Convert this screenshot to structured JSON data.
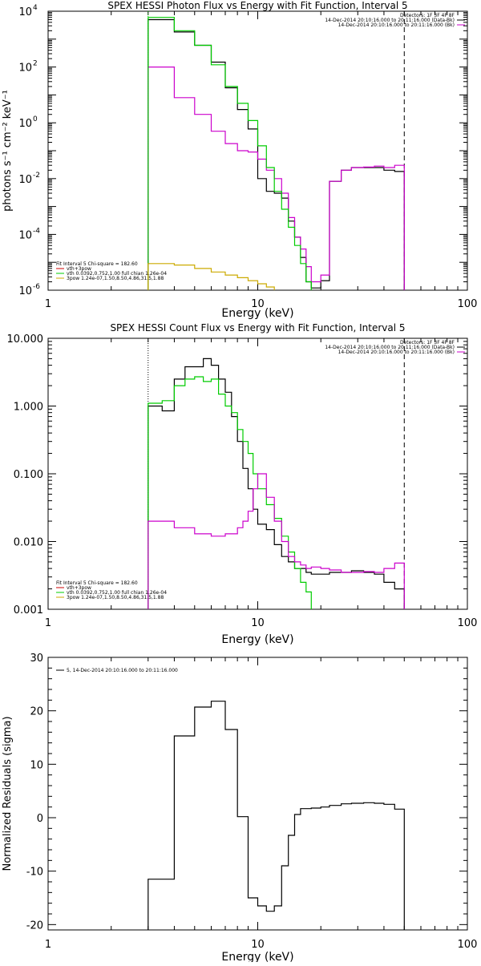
{
  "chart_data": [
    {
      "type": "line",
      "title": "SPEX HESSI Photon Flux vs Energy with Fit Function, Interval 5",
      "xlabel": "Energy (keV)",
      "ylabel": "photons s⁻¹ cm⁻² keV⁻¹",
      "xscale": "log",
      "yscale": "log",
      "xlim": [
        1,
        100
      ],
      "ylim": [
        1e-06,
        10000.0
      ],
      "x_ticks": [
        {
          "value": 1,
          "label": "1"
        },
        {
          "value": 10,
          "label": "10"
        },
        {
          "value": 100,
          "label": "100"
        }
      ],
      "y_ticks": [
        {
          "value": 10000.0,
          "mant": "10",
          "exp": "4"
        },
        {
          "value": 100.0,
          "mant": "10",
          "exp": "2"
        },
        {
          "value": 1,
          "mant": "10",
          "exp": "0"
        },
        {
          "value": 0.01,
          "mant": "10",
          "exp": "-2"
        },
        {
          "value": 0.0001,
          "mant": "10",
          "exp": "-4"
        },
        {
          "value": 1e-06,
          "mant": "10",
          "exp": "-6"
        }
      ],
      "vlines": [
        {
          "x": 3,
          "style": "dotted",
          "color": "#00cc00"
        },
        {
          "x": 50,
          "style": "dashed",
          "color": "#000000"
        }
      ],
      "legend_right": [
        {
          "text": "Detectors: 1F 3F 4F 8F",
          "color": ""
        },
        {
          "text": "14-Dec-2014 20:10:16.000 to 20:11:16.000 (Data-Bk)",
          "color": "#000000"
        },
        {
          "text": "14-Dec-2014 20:10:16.000 to 20:11:16.000 (Bk)",
          "color": "#cc00cc"
        }
      ],
      "legend_left": [
        {
          "text": "Fit Interval 5   Chi-square = 182.60",
          "color": ""
        },
        {
          "text": "vth+3pow",
          "color": "#cc0000"
        },
        {
          "text": "vth 0.0392,0.752,1.00  full chian 1.26e-04",
          "color": "#00cc00"
        },
        {
          "text": "3pow 1.24e-07,1.50,8.50,4.86,31.5,1.88",
          "color": "#ccaa00"
        }
      ],
      "series": [
        {
          "color": "#000000",
          "edges": [
            3,
            4,
            5,
            6,
            7,
            8,
            9,
            10,
            11,
            12,
            13,
            14,
            15,
            16,
            17,
            18,
            20,
            22,
            25,
            28,
            32,
            36,
            40,
            45,
            50
          ],
          "values": [
            5000,
            1800,
            600,
            150,
            18,
            3,
            0.6,
            0.01,
            0.0035,
            0.003,
            0.002,
            0.0003,
            8e-05,
            1.5e-05,
            2e-06,
            1.2e-06,
            2.2e-06,
            0.008,
            0.02,
            0.025,
            0.025,
            0.025,
            0.02,
            0.018
          ]
        },
        {
          "color": "#cc00cc",
          "edges": [
            3,
            4,
            5,
            6,
            7,
            8,
            9,
            10,
            11,
            12,
            13,
            14,
            15,
            16,
            17,
            18,
            20,
            22,
            25,
            28,
            32,
            36,
            40,
            45,
            50
          ],
          "values": [
            100,
            8,
            2,
            0.5,
            0.18,
            0.1,
            0.09,
            0.05,
            0.02,
            0.01,
            0.003,
            0.0004,
            8e-05,
            3e-05,
            7e-06,
            2e-06,
            3.5e-06,
            0.008,
            0.02,
            0.025,
            0.026,
            0.028,
            0.025,
            0.03
          ]
        },
        {
          "color": "#00cc00",
          "edges": [
            3,
            4,
            5,
            6,
            7,
            8,
            9,
            10,
            11,
            12,
            13,
            14,
            15,
            16,
            17,
            18
          ],
          "values": [
            6000,
            2000,
            600,
            120,
            20,
            5,
            1.2,
            0.15,
            0.025,
            0.0035,
            0.0008,
            0.00018,
            4e-05,
            9e-06,
            2e-06
          ]
        },
        {
          "color": "#ccaa00",
          "edges": [
            3,
            4,
            5,
            6,
            7,
            8,
            9,
            10,
            11,
            12
          ],
          "values": [
            9e-06,
            8e-06,
            6e-06,
            4.5e-06,
            3.5e-06,
            2.8e-06,
            2.2e-06,
            1.7e-06,
            1.3e-06
          ]
        }
      ]
    },
    {
      "type": "line",
      "title": "SPEX HESSI Count Flux vs Energy with Fit Function, Interval 5",
      "xlabel": "Energy (keV)",
      "ylabel": "",
      "xscale": "log",
      "yscale": "log",
      "xlim": [
        1,
        100
      ],
      "ylim": [
        0.001,
        10
      ],
      "x_ticks": [
        {
          "value": 1,
          "label": "1"
        },
        {
          "value": 10,
          "label": "10"
        },
        {
          "value": 100,
          "label": "100"
        }
      ],
      "y_ticks": [
        {
          "value": 10,
          "label": "10.000"
        },
        {
          "value": 1,
          "label": "1.000"
        },
        {
          "value": 0.1,
          "label": "0.100"
        },
        {
          "value": 0.01,
          "label": "0.010"
        },
        {
          "value": 0.001,
          "label": "0.001"
        }
      ],
      "vlines": [
        {
          "x": 3,
          "style": "dotted",
          "color": "#000000"
        },
        {
          "x": 50,
          "style": "dashed",
          "color": "#000000"
        }
      ],
      "legend_right": [
        {
          "text": "Detectors: 1F 3F 4F 8F",
          "color": ""
        },
        {
          "text": "14-Dec-2014 20:10:16.000 to 20:11:16.000 (Data-Bk)",
          "color": "#000000"
        },
        {
          "text": "14-Dec-2014 20:10:16.000 to 20:11:16.000 (Bk)",
          "color": "#cc00cc"
        }
      ],
      "legend_left": [
        {
          "text": "Fit Interval 5   Chi-square = 182.60",
          "color": ""
        },
        {
          "text": "vth+3pow",
          "color": "#cc0000"
        },
        {
          "text": "vth 0.0392,0.752,1.00  full chian 1.26e-04",
          "color": "#00cc00"
        },
        {
          "text": "3pow 1.24e-07,1.50,8.50,4.86,31.5,1.88",
          "color": "#ccaa00"
        }
      ],
      "series": [
        {
          "color": "#000000",
          "edges": [
            3,
            3.5,
            4,
            4.5,
            5,
            5.5,
            6,
            6.5,
            7,
            7.5,
            8,
            8.5,
            9,
            9.5,
            10,
            11,
            12,
            13,
            14,
            15,
            16,
            17,
            18,
            20,
            22,
            25,
            28,
            32,
            36,
            40,
            45,
            50
          ],
          "values": [
            1.0,
            0.85,
            2.5,
            3.8,
            3.8,
            5.0,
            4.0,
            2.5,
            1.6,
            0.7,
            0.3,
            0.12,
            0.06,
            0.03,
            0.018,
            0.015,
            0.009,
            0.006,
            0.005,
            0.004,
            0.004,
            0.0035,
            0.0033,
            0.0033,
            0.0035,
            0.0035,
            0.0037,
            0.0035,
            0.0033,
            0.0025,
            0.002
          ]
        },
        {
          "color": "#00cc00",
          "edges": [
            3,
            3.5,
            4,
            4.5,
            5,
            5.5,
            6,
            6.5,
            7,
            7.5,
            8,
            8.5,
            9,
            9.5,
            10,
            11,
            12,
            13,
            14,
            15,
            16,
            17,
            18
          ],
          "values": [
            1.1,
            1.2,
            2.0,
            2.5,
            2.7,
            2.3,
            2.5,
            1.5,
            1.0,
            0.8,
            0.45,
            0.3,
            0.2,
            0.1,
            0.06,
            0.035,
            0.022,
            0.012,
            0.007,
            0.004,
            0.0025,
            0.0018
          ]
        },
        {
          "color": "#cc00cc",
          "edges": [
            3,
            4,
            5,
            6,
            7,
            8,
            8.5,
            9,
            9.5,
            10,
            11,
            12,
            13,
            14,
            15,
            16,
            17,
            18,
            20,
            22,
            25,
            28,
            32,
            36,
            40,
            45,
            50
          ],
          "values": [
            0.02,
            0.016,
            0.013,
            0.012,
            0.013,
            0.016,
            0.02,
            0.028,
            0.06,
            0.1,
            0.045,
            0.02,
            0.01,
            0.006,
            0.005,
            0.0045,
            0.004,
            0.0042,
            0.004,
            0.0038,
            0.0035,
            0.0035,
            0.0036,
            0.0035,
            0.004,
            0.0048
          ]
        }
      ]
    },
    {
      "type": "line",
      "title": "",
      "xlabel": "Energy (keV)",
      "ylabel": "Normalized Residuals (sigma)",
      "xscale": "log",
      "yscale": "linear",
      "xlim": [
        1,
        100
      ],
      "ylim": [
        -21,
        30
      ],
      "x_ticks": [
        {
          "value": 1,
          "label": "1"
        },
        {
          "value": 10,
          "label": "10"
        },
        {
          "value": 100,
          "label": "100"
        }
      ],
      "y_ticks": [
        {
          "value": 30,
          "label": "30"
        },
        {
          "value": 20,
          "label": "20"
        },
        {
          "value": 10,
          "label": "10"
        },
        {
          "value": 0,
          "label": "0"
        },
        {
          "value": -10,
          "label": "-10"
        },
        {
          "value": -20,
          "label": "-20"
        }
      ],
      "legend_left": [
        {
          "text": "5, 14-Dec-2014 20:10:16.000 to 20:11:16.000",
          "color": "#000000"
        }
      ],
      "series": [
        {
          "color": "#000000",
          "edges": [
            3,
            4,
            5,
            6,
            7,
            8,
            9,
            10,
            11,
            12,
            13,
            14,
            15,
            16,
            17,
            18,
            20,
            22,
            25,
            28,
            32,
            36,
            40,
            45,
            50
          ],
          "values": [
            -11.5,
            15.3,
            20.7,
            21.8,
            16.5,
            0.2,
            -15,
            -16.5,
            -17.5,
            -16.5,
            -9,
            -3.3,
            0.6,
            1.7,
            1.7,
            1.8,
            2.0,
            2.3,
            2.6,
            2.7,
            2.8,
            2.7,
            2.5,
            1.6
          ]
        }
      ]
    }
  ]
}
